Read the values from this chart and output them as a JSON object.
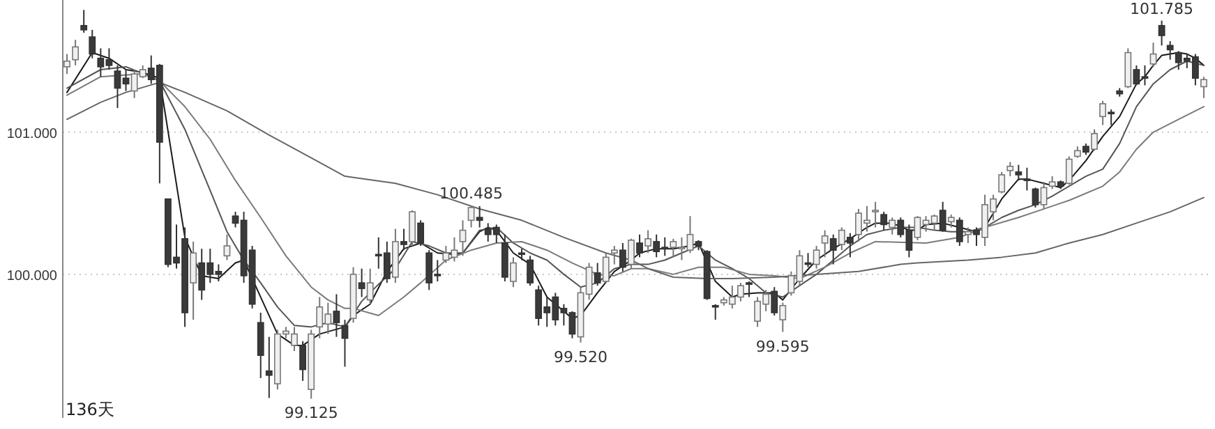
{
  "chart_data": {
    "type": "candlestick",
    "categories": [
      null,
      null,
      null,
      null,
      null,
      null,
      null,
      null,
      null,
      null,
      null,
      null,
      null,
      null,
      null,
      null,
      null,
      null,
      null,
      null,
      null,
      null,
      null,
      null,
      null,
      null,
      null,
      null,
      null,
      null,
      null,
      null,
      null,
      null,
      null,
      null,
      null,
      null,
      null,
      null,
      null,
      null,
      null,
      null,
      null,
      null,
      null,
      null,
      null,
      null,
      null,
      null,
      null,
      null,
      null,
      null,
      null,
      null,
      null,
      null,
      null,
      null,
      null,
      null,
      null,
      null,
      null,
      null,
      null,
      null,
      null,
      null,
      null,
      null,
      null,
      null,
      null,
      null,
      null,
      null,
      null,
      null,
      null,
      null,
      null,
      null,
      null,
      null,
      null,
      null,
      null,
      null,
      null,
      null,
      null,
      null,
      null,
      null,
      null,
      null,
      null,
      null,
      null,
      null,
      null,
      null,
      null,
      null,
      null,
      null,
      null,
      null,
      null,
      null,
      null,
      null,
      null,
      null,
      null,
      null,
      null,
      null,
      null,
      null,
      null,
      null,
      null,
      null,
      null,
      null,
      null,
      null,
      null,
      null,
      null,
      null
    ],
    "ohlc": [
      [
        101.46,
        101.55,
        101.41,
        101.5
      ],
      [
        101.51,
        101.65,
        101.47,
        101.6
      ],
      [
        101.75,
        101.86,
        101.7,
        101.72
      ],
      [
        101.67,
        101.72,
        101.52,
        101.55
      ],
      [
        101.52,
        101.59,
        101.39,
        101.46
      ],
      [
        101.51,
        101.59,
        101.44,
        101.47
      ],
      [
        101.43,
        101.47,
        101.17,
        101.31
      ],
      [
        101.38,
        101.44,
        101.29,
        101.34
      ],
      [
        101.29,
        101.44,
        101.24,
        101.41
      ],
      [
        101.39,
        101.47,
        101.38,
        101.44
      ],
      [
        101.45,
        101.54,
        101.34,
        101.37
      ],
      [
        101.47,
        101.48,
        100.64,
        100.93
      ],
      [
        100.53,
        100.53,
        100.05,
        100.07
      ],
      [
        100.12,
        100.35,
        100.04,
        100.08
      ],
      [
        100.25,
        100.33,
        99.63,
        99.73
      ],
      [
        99.94,
        100.23,
        99.68,
        100.15
      ],
      [
        100.08,
        100.18,
        99.82,
        99.89
      ],
      [
        100.08,
        100.18,
        99.94,
        100.0
      ],
      [
        100.02,
        100.07,
        99.95,
        100.0
      ],
      [
        100.13,
        100.28,
        100.1,
        100.2
      ],
      [
        100.41,
        100.44,
        100.33,
        100.36
      ],
      [
        100.38,
        100.44,
        99.94,
        99.99
      ],
      [
        100.17,
        100.2,
        99.76,
        99.79
      ],
      [
        99.66,
        99.73,
        99.27,
        99.43
      ],
      [
        99.32,
        99.56,
        99.13,
        99.29
      ],
      [
        99.23,
        99.61,
        99.19,
        99.58
      ],
      [
        99.58,
        99.63,
        99.55,
        99.6
      ],
      [
        99.5,
        99.63,
        99.46,
        99.58
      ],
      [
        99.5,
        99.53,
        99.25,
        99.33
      ],
      [
        99.19,
        99.61,
        99.125,
        99.58
      ],
      [
        99.63,
        99.84,
        99.55,
        99.77
      ],
      [
        99.65,
        99.8,
        99.58,
        99.72
      ],
      [
        99.74,
        99.86,
        99.56,
        99.66
      ],
      [
        99.64,
        99.68,
        99.35,
        99.55
      ],
      [
        99.69,
        100.05,
        99.66,
        100.0
      ],
      [
        99.94,
        100.04,
        99.84,
        99.9
      ],
      [
        99.82,
        100.04,
        99.79,
        99.94
      ],
      [
        100.14,
        100.26,
        100.04,
        100.13
      ],
      [
        100.15,
        100.23,
        99.94,
        99.97
      ],
      [
        99.98,
        100.32,
        99.94,
        100.23
      ],
      [
        100.23,
        100.32,
        100.17,
        100.21
      ],
      [
        100.23,
        100.45,
        100.2,
        100.44
      ],
      [
        100.36,
        100.38,
        100.2,
        100.22
      ],
      [
        100.15,
        100.17,
        99.89,
        99.94
      ],
      [
        100.0,
        100.1,
        99.95,
        99.99
      ],
      [
        100.1,
        100.2,
        100.08,
        100.15
      ],
      [
        100.12,
        100.26,
        100.09,
        100.17
      ],
      [
        100.23,
        100.38,
        100.13,
        100.31
      ],
      [
        100.38,
        100.485,
        100.33,
        100.47
      ],
      [
        100.4,
        100.48,
        100.33,
        100.38
      ],
      [
        100.32,
        100.36,
        100.23,
        100.28
      ],
      [
        100.33,
        100.35,
        100.22,
        100.28
      ],
      [
        100.22,
        100.28,
        99.95,
        99.98
      ],
      [
        99.95,
        100.12,
        99.91,
        100.08
      ],
      [
        100.15,
        100.18,
        100.1,
        100.14
      ],
      [
        100.1,
        100.13,
        99.92,
        99.94
      ],
      [
        99.89,
        99.92,
        99.64,
        99.69
      ],
      [
        99.77,
        99.84,
        99.63,
        99.73
      ],
      [
        99.84,
        99.87,
        99.64,
        99.68
      ],
      [
        99.76,
        99.79,
        99.64,
        99.73
      ],
      [
        99.73,
        99.74,
        99.55,
        99.58
      ],
      [
        99.56,
        99.91,
        99.52,
        99.87
      ],
      [
        99.86,
        100.08,
        99.82,
        100.05
      ],
      [
        100.01,
        100.08,
        99.92,
        99.94
      ],
      [
        99.95,
        100.15,
        99.94,
        100.12
      ],
      [
        100.15,
        100.2,
        100.07,
        100.17
      ],
      [
        100.17,
        100.22,
        100.02,
        100.05
      ],
      [
        100.07,
        100.25,
        100.04,
        100.24
      ],
      [
        100.22,
        100.28,
        100.12,
        100.15
      ],
      [
        100.2,
        100.31,
        100.15,
        100.25
      ],
      [
        100.23,
        100.28,
        100.12,
        100.16
      ],
      [
        100.19,
        100.26,
        100.13,
        100.18
      ],
      [
        100.19,
        100.25,
        100.12,
        100.23
      ],
      [
        100.18,
        100.26,
        100.1,
        100.19
      ],
      [
        100.17,
        100.41,
        100.15,
        100.28
      ],
      [
        100.23,
        100.24,
        100.17,
        100.2
      ],
      [
        100.16,
        100.17,
        99.82,
        99.83
      ],
      [
        99.78,
        99.79,
        99.68,
        99.77
      ],
      [
        99.8,
        99.84,
        99.78,
        99.82
      ],
      [
        99.79,
        99.92,
        99.76,
        99.84
      ],
      [
        99.84,
        99.94,
        99.81,
        99.92
      ],
      [
        99.94,
        99.95,
        99.84,
        99.93
      ],
      [
        99.67,
        99.84,
        99.63,
        99.81
      ],
      [
        99.79,
        99.89,
        99.74,
        99.86
      ],
      [
        99.88,
        99.91,
        99.71,
        99.73
      ],
      [
        99.68,
        99.8,
        99.595,
        99.78
      ],
      [
        99.87,
        100.02,
        99.85,
        99.99
      ],
      [
        99.95,
        100.17,
        99.92,
        100.13
      ],
      [
        100.08,
        100.15,
        100.05,
        100.07
      ],
      [
        100.07,
        100.2,
        100.04,
        100.17
      ],
      [
        100.22,
        100.31,
        100.12,
        100.27
      ],
      [
        100.25,
        100.28,
        100.07,
        100.17
      ],
      [
        100.21,
        100.33,
        100.17,
        100.31
      ],
      [
        100.26,
        100.29,
        100.12,
        100.22
      ],
      [
        100.28,
        100.46,
        100.23,
        100.43
      ],
      [
        100.36,
        100.48,
        100.3,
        100.38
      ],
      [
        100.44,
        100.51,
        100.33,
        100.45
      ],
      [
        100.42,
        100.44,
        100.31,
        100.35
      ],
      [
        100.33,
        100.4,
        100.28,
        100.38
      ],
      [
        100.38,
        100.4,
        100.26,
        100.28
      ],
      [
        100.31,
        100.35,
        100.12,
        100.17
      ],
      [
        100.26,
        100.41,
        100.24,
        100.4
      ],
      [
        100.35,
        100.41,
        100.3,
        100.38
      ],
      [
        100.36,
        100.42,
        100.31,
        100.41
      ],
      [
        100.45,
        100.51,
        100.3,
        100.31
      ],
      [
        100.37,
        100.42,
        100.33,
        100.4
      ],
      [
        100.38,
        100.4,
        100.2,
        100.23
      ],
      [
        100.28,
        100.33,
        100.22,
        100.3
      ],
      [
        100.31,
        100.33,
        100.2,
        100.28
      ],
      [
        100.26,
        100.56,
        100.2,
        100.49
      ],
      [
        100.44,
        100.56,
        100.38,
        100.53
      ],
      [
        100.58,
        100.72,
        100.57,
        100.7
      ],
      [
        100.73,
        100.79,
        100.69,
        100.76
      ],
      [
        100.72,
        100.77,
        100.66,
        100.7
      ],
      [
        100.67,
        100.75,
        100.59,
        100.66
      ],
      [
        100.6,
        100.61,
        100.47,
        100.49
      ],
      [
        100.49,
        100.65,
        100.46,
        100.61
      ],
      [
        100.62,
        100.69,
        100.6,
        100.65
      ],
      [
        100.65,
        100.66,
        100.6,
        100.62
      ],
      [
        100.64,
        100.83,
        100.63,
        100.81
      ],
      [
        100.83,
        100.9,
        100.82,
        100.87
      ],
      [
        100.9,
        100.92,
        100.84,
        100.86
      ],
      [
        100.88,
        101.02,
        100.87,
        100.99
      ],
      [
        101.11,
        101.22,
        101.05,
        101.2
      ],
      [
        101.14,
        101.16,
        101.05,
        101.13
      ],
      [
        101.29,
        101.31,
        101.25,
        101.27
      ],
      [
        101.32,
        101.59,
        101.31,
        101.56
      ],
      [
        101.44,
        101.47,
        101.33,
        101.34
      ],
      [
        101.39,
        101.47,
        101.33,
        101.38
      ],
      [
        101.48,
        101.63,
        101.46,
        101.55
      ],
      [
        101.75,
        101.785,
        101.61,
        101.68
      ],
      [
        101.61,
        101.64,
        101.51,
        101.58
      ],
      [
        101.56,
        101.57,
        101.44,
        101.49
      ],
      [
        101.52,
        101.55,
        101.45,
        101.5
      ],
      [
        101.53,
        101.55,
        101.33,
        101.38
      ],
      [
        101.32,
        101.39,
        101.24,
        101.37
      ]
    ],
    "series": [
      {
        "type": "line",
        "color": "#1a1a1a",
        "values": [
          101.28,
          null,
          null,
          101.56,
          null,
          101.52,
          null,
          101.44,
          null,
          101.42,
          null,
          101.38,
          null,
          null,
          100.26,
          null,
          99.99,
          null,
          99.97,
          null,
          100.08,
          100.1,
          null,
          99.84,
          null,
          99.58,
          null,
          99.5,
          99.5,
          null,
          99.58,
          null,
          null,
          99.63,
          99.71,
          null,
          99.79,
          null,
          100.02,
          null,
          100.18,
          null,
          100.22,
          null,
          100.15,
          null,
          100.14,
          100.15,
          null,
          100.3,
          100.33,
          100.31,
          null,
          100.15,
          null,
          100.07,
          null,
          99.84,
          null,
          99.74,
          99.69,
          99.71,
          null,
          99.87,
          null,
          100.02,
          null,
          100.1,
          100.15,
          null,
          100.18,
          null,
          100.18,
          null,
          100.2,
          100.22,
          null,
          99.95,
          null,
          99.84,
          99.86,
          null,
          99.87,
          null,
          99.87,
          99.82,
          null,
          99.97,
          null,
          100.1,
          null,
          100.18,
          null,
          100.25,
          null,
          100.33,
          100.36,
          null,
          100.36,
          null,
          100.31,
          100.31,
          100.35,
          null,
          100.36,
          null,
          100.33,
          null,
          100.3,
          100.33,
          null,
          100.53,
          null,
          100.67,
          100.67,
          null,
          100.64,
          null,
          100.61,
          100.66,
          null,
          100.8,
          null,
          100.97,
          null,
          101.11,
          null,
          101.34,
          101.39,
          101.47,
          101.54,
          null,
          101.56,
          101.55,
          101.52,
          101.47
        ]
      },
      {
        "type": "line",
        "color": "#555555",
        "values": [
          101.31,
          null,
          null,
          null,
          101.44,
          null,
          null,
          101.46,
          null,
          null,
          101.39,
          101.36,
          null,
          null,
          101.02,
          null,
          null,
          100.59,
          null,
          100.3,
          null,
          100.1,
          null,
          99.94,
          null,
          99.77,
          null,
          99.64,
          null,
          99.63,
          null,
          99.66,
          null,
          99.63,
          null,
          99.81,
          null,
          99.93,
          null,
          100.04,
          null,
          100.23,
          null,
          100.2,
          null,
          100.15,
          null,
          100.15,
          null,
          100.31,
          null,
          100.33,
          null,
          100.22,
          null,
          100.15,
          null,
          100.1,
          null,
          100.0,
          null,
          99.91,
          null,
          99.94,
          null,
          100.04,
          null,
          100.07,
          null,
          100.07,
          null,
          100.1,
          null,
          100.15,
          null,
          100.2,
          null,
          100.1,
          null,
          100.04,
          null,
          99.97,
          null,
          99.87,
          null,
          99.84,
          null,
          99.92,
          null,
          100.0,
          null,
          100.1,
          null,
          100.2,
          null,
          100.28,
          null,
          100.31,
          null,
          100.33,
          null,
          100.33,
          null,
          100.31,
          null,
          100.3,
          null,
          100.3,
          null,
          100.33,
          null,
          100.4,
          null,
          100.45,
          null,
          100.49,
          null,
          100.55,
          null,
          100.62,
          null,
          100.69,
          null,
          100.74,
          null,
          100.92,
          null,
          101.18,
          null,
          101.34,
          null,
          101.44,
          null,
          101.5,
          null,
          101.47
        ]
      },
      {
        "type": "line",
        "color": "#7a7a7a",
        "values": [
          101.26,
          null,
          null,
          null,
          101.39,
          null,
          null,
          null,
          null,
          101.41,
          null,
          101.36,
          null,
          null,
          101.18,
          null,
          null,
          100.95,
          null,
          null,
          100.66,
          null,
          null,
          100.4,
          null,
          null,
          100.13,
          null,
          null,
          99.91,
          null,
          99.82,
          null,
          99.76,
          99.76,
          null,
          null,
          99.71,
          null,
          null,
          99.84,
          null,
          99.94,
          null,
          null,
          100.1,
          null,
          null,
          100.17,
          null,
          null,
          100.22,
          null,
          null,
          100.23,
          null,
          null,
          100.17,
          null,
          null,
          100.08,
          null,
          null,
          100.0,
          null,
          99.99,
          null,
          100.04,
          null,
          100.04,
          null,
          null,
          100.0,
          null,
          null,
          100.05,
          null,
          null,
          100.05,
          null,
          null,
          100.0,
          null,
          null,
          99.99,
          null,
          null,
          99.97,
          null,
          null,
          100.05,
          null,
          null,
          100.15,
          null,
          null,
          100.23,
          null,
          null,
          null,
          null,
          null,
          100.22,
          null,
          null,
          null,
          100.26,
          null,
          null,
          100.33,
          null,
          null,
          null,
          100.4,
          null,
          100.44,
          null,
          null,
          null,
          100.52,
          null,
          null,
          null,
          100.62,
          null,
          100.72,
          null,
          100.88,
          null,
          101.0,
          null,
          null,
          101.09,
          null,
          null,
          101.18
        ]
      },
      {
        "type": "line",
        "color": "#666666",
        "values": [
          101.09,
          null,
          null,
          null,
          101.21,
          null,
          null,
          101.28,
          null,
          null,
          null,
          101.35,
          null,
          null,
          101.28,
          null,
          null,
          null,
          null,
          101.15,
          null,
          null,
          null,
          null,
          100.98,
          null,
          null,
          null,
          null,
          100.82,
          null,
          null,
          null,
          100.69,
          null,
          null,
          null,
          null,
          null,
          100.64,
          null,
          null,
          null,
          null,
          100.56,
          null,
          null,
          null,
          null,
          100.46,
          null,
          null,
          null,
          null,
          100.38,
          null,
          null,
          null,
          null,
          100.26,
          null,
          null,
          null,
          null,
          100.15,
          null,
          null,
          100.1,
          null,
          100.04,
          null,
          null,
          99.98,
          null,
          null,
          null,
          99.97,
          null,
          null,
          99.97,
          null,
          null,
          null,
          null,
          99.98,
          null,
          null,
          null,
          null,
          100.0,
          null,
          null,
          null,
          null,
          100.02,
          null,
          null,
          null,
          null,
          100.07,
          null,
          100.08,
          null,
          null,
          null,
          null,
          null,
          100.1,
          null,
          null,
          null,
          100.12,
          null,
          null,
          null,
          100.15,
          null,
          null,
          null,
          100.22,
          null,
          null,
          null,
          100.28,
          null,
          null,
          null,
          100.36,
          null,
          null,
          null,
          100.44,
          null,
          null,
          null,
          100.54
        ]
      }
    ],
    "ylim": [
      98.99,
      101.93
    ],
    "yticks": [
      {
        "value": 100,
        "label": "100.000"
      },
      {
        "value": 101,
        "label": "101.000"
      }
    ],
    "grid": "y",
    "tick_labels": "y",
    "annotations": [
      "136天",
      {
        "text": "101.785",
        "y": 101.785
      },
      {
        "text": "100.485",
        "y": 100.485
      },
      {
        "text": "99.520",
        "y": 99.52
      },
      {
        "text": "99.595",
        "y": 99.595
      },
      {
        "text": "99.125",
        "y": 99.125
      }
    ]
  }
}
